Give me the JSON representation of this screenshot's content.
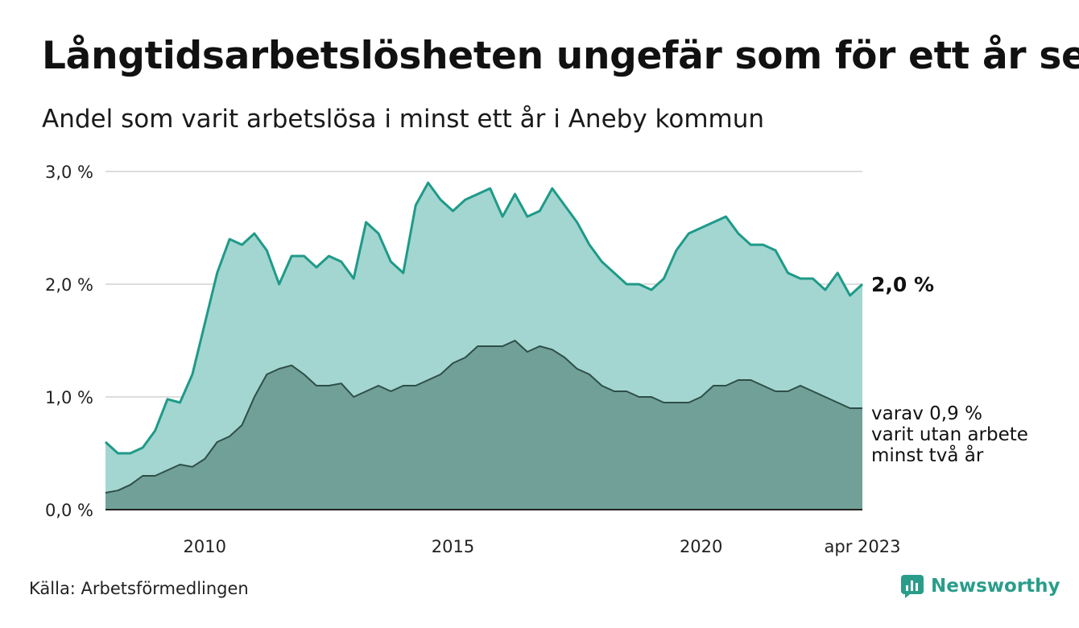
{
  "title": "Långtidsarbetslösheten ungefär som för ett år sen",
  "subtitle": "Andel som varit arbetslösa i minst ett år i Aneby kommun",
  "source": "Källa: Arbetsförmedlingen",
  "brand": {
    "name": "Newsworthy",
    "icon": "newsworthy-logo-icon"
  },
  "colors": {
    "total_fill": "#a3d6d0",
    "total_line": "#1f9a89",
    "two_year_fill": "#70a098",
    "two_year_line": "#2f4e48",
    "grid": "#dddddd"
  },
  "chart_data": {
    "type": "area",
    "ylim": [
      0,
      3
    ],
    "yticks": [
      {
        "value": 0,
        "label": "0,0 %"
      },
      {
        "value": 1,
        "label": "1,0 %"
      },
      {
        "value": 2,
        "label": "2,0 %"
      },
      {
        "value": 3,
        "label": "3,0 %"
      }
    ],
    "xticks": [
      {
        "value": 2010,
        "label": "2010"
      },
      {
        "value": 2015,
        "label": "2015"
      },
      {
        "value": 2020,
        "label": "2020"
      },
      {
        "value": 2023.25,
        "label": "apr 2023"
      }
    ],
    "x_range": [
      2008,
      2023.25
    ],
    "grid": true,
    "end_label": "2,0 %",
    "annotation": [
      "varav 0,9 %",
      "varit utan arbete",
      "minst två år"
    ],
    "series": [
      {
        "key": "min_ett_ar",
        "x": [
          2008.0,
          2008.25,
          2008.5,
          2008.75,
          2009.0,
          2009.25,
          2009.5,
          2009.75,
          2010.0,
          2010.25,
          2010.5,
          2010.75,
          2011.0,
          2011.25,
          2011.5,
          2011.75,
          2012.0,
          2012.25,
          2012.5,
          2012.75,
          2013.0,
          2013.25,
          2013.5,
          2013.75,
          2014.0,
          2014.25,
          2014.5,
          2014.75,
          2015.0,
          2015.25,
          2015.5,
          2015.75,
          2016.0,
          2016.25,
          2016.5,
          2016.75,
          2017.0,
          2017.25,
          2017.5,
          2017.75,
          2018.0,
          2018.25,
          2018.5,
          2018.75,
          2019.0,
          2019.25,
          2019.5,
          2019.75,
          2020.0,
          2020.25,
          2020.5,
          2020.75,
          2021.0,
          2021.25,
          2021.5,
          2021.75,
          2022.0,
          2022.25,
          2022.5,
          2022.75,
          2023.0,
          2023.25
        ],
        "values": [
          0.6,
          0.5,
          0.5,
          0.55,
          0.7,
          0.98,
          0.95,
          1.2,
          1.65,
          2.1,
          2.4,
          2.35,
          2.45,
          2.3,
          2.0,
          2.25,
          2.25,
          2.15,
          2.25,
          2.2,
          2.05,
          2.55,
          2.45,
          2.2,
          2.1,
          2.7,
          2.9,
          2.75,
          2.65,
          2.75,
          2.8,
          2.85,
          2.6,
          2.8,
          2.6,
          2.65,
          2.85,
          2.7,
          2.55,
          2.35,
          2.2,
          2.1,
          2.0,
          2.0,
          1.95,
          2.05,
          2.3,
          2.45,
          2.5,
          2.55,
          2.6,
          2.45,
          2.35,
          2.35,
          2.3,
          2.1,
          2.05,
          2.05,
          1.95,
          2.1,
          1.9,
          2.0
        ]
      },
      {
        "key": "varav_minst_tva_ar",
        "x": [
          2008.0,
          2008.25,
          2008.5,
          2008.75,
          2009.0,
          2009.25,
          2009.5,
          2009.75,
          2010.0,
          2010.25,
          2010.5,
          2010.75,
          2011.0,
          2011.25,
          2011.5,
          2011.75,
          2012.0,
          2012.25,
          2012.5,
          2012.75,
          2013.0,
          2013.25,
          2013.5,
          2013.75,
          2014.0,
          2014.25,
          2014.5,
          2014.75,
          2015.0,
          2015.25,
          2015.5,
          2015.75,
          2016.0,
          2016.25,
          2016.5,
          2016.75,
          2017.0,
          2017.25,
          2017.5,
          2017.75,
          2018.0,
          2018.25,
          2018.5,
          2018.75,
          2019.0,
          2019.25,
          2019.5,
          2019.75,
          2020.0,
          2020.25,
          2020.5,
          2020.75,
          2021.0,
          2021.25,
          2021.5,
          2021.75,
          2022.0,
          2022.25,
          2022.5,
          2022.75,
          2023.0,
          2023.25
        ],
        "values": [
          0.15,
          0.17,
          0.22,
          0.3,
          0.3,
          0.35,
          0.4,
          0.38,
          0.45,
          0.6,
          0.65,
          0.75,
          1.0,
          1.2,
          1.25,
          1.28,
          1.2,
          1.1,
          1.1,
          1.12,
          1.0,
          1.05,
          1.1,
          1.05,
          1.1,
          1.1,
          1.15,
          1.2,
          1.3,
          1.35,
          1.45,
          1.45,
          1.45,
          1.5,
          1.4,
          1.45,
          1.42,
          1.35,
          1.25,
          1.2,
          1.1,
          1.05,
          1.05,
          1.0,
          1.0,
          0.95,
          0.95,
          0.95,
          1.0,
          1.1,
          1.1,
          1.15,
          1.15,
          1.1,
          1.05,
          1.05,
          1.1,
          1.05,
          1.0,
          0.95,
          0.9,
          0.9
        ]
      }
    ]
  }
}
